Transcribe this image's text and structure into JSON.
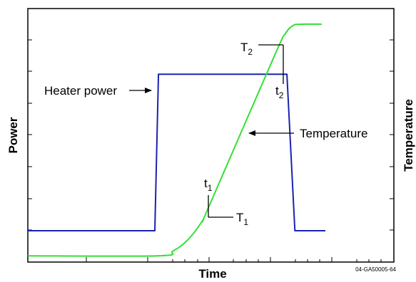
{
  "chart_data": {
    "type": "line",
    "title": "",
    "xlabel": "Time",
    "ylabel_left": "Power",
    "ylabel_right": "Temperature",
    "grid": false,
    "legend": "none",
    "series": [
      {
        "name": "Heater power",
        "color": "#1a22b0",
        "x": [
          0,
          17.5,
          18.0,
          35.7,
          36.8,
          41
        ],
        "y": [
          1.0,
          1.0,
          6.0,
          6.0,
          1.0,
          1.0
        ]
      },
      {
        "name": "Temperature",
        "color": "#33e033",
        "x": [
          0,
          18,
          20,
          22,
          24,
          25,
          34,
          35.5,
          36.5,
          37.5,
          40.5
        ],
        "y": [
          0.2,
          0.2,
          0.35,
          0.7,
          1.3,
          1.8,
          6.6,
          7.3,
          7.55,
          7.6,
          7.6
        ]
      }
    ],
    "annotations": [
      {
        "kind": "label-arrow",
        "text": "Heater power"
      },
      {
        "kind": "label-arrow",
        "text": "Temperature"
      },
      {
        "kind": "marker",
        "time_label": "t",
        "time_sub": "1",
        "temp_label": "T",
        "temp_sub": "1"
      },
      {
        "kind": "marker",
        "time_label": "t",
        "time_sub": "2",
        "temp_label": "T",
        "temp_sub": "2"
      }
    ]
  },
  "figure_code": "04-GA50005-64"
}
